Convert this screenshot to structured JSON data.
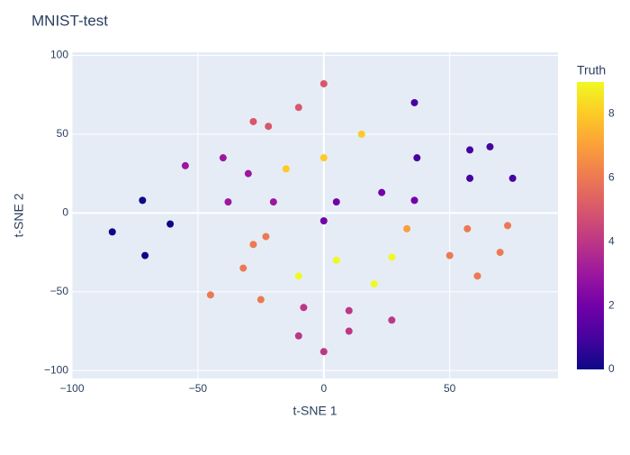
{
  "chart_data": {
    "type": "scatter",
    "title": "MNIST-test",
    "x_label": "t-SNE 1",
    "y_label": "t-SNE 2",
    "colorbar_title": "Truth",
    "x": [
      -72,
      -84,
      -61,
      -71,
      0,
      -10,
      -28,
      -22,
      15,
      0,
      -15,
      36,
      37,
      66,
      58,
      58,
      75,
      -55,
      -40,
      -30,
      -38,
      -20,
      5,
      0,
      23,
      36,
      -28,
      -23,
      -32,
      -45,
      -25,
      57,
      70,
      50,
      61,
      73,
      5,
      27,
      -10,
      20,
      33,
      -8,
      -10,
      10,
      10,
      27,
      0
    ],
    "y": [
      8,
      -12,
      -7,
      -27,
      82,
      67,
      58,
      55,
      50,
      35,
      28,
      70,
      35,
      42,
      40,
      22,
      22,
      30,
      35,
      25,
      7,
      7,
      7,
      -5,
      13,
      8,
      -20,
      -15,
      -35,
      -52,
      -55,
      -10,
      -25,
      -27,
      -40,
      -8,
      -30,
      -28,
      -40,
      -45,
      -10,
      -60,
      -78,
      -75,
      -62,
      -68,
      -88
    ],
    "color_values": [
      0,
      0,
      0,
      0,
      5,
      5,
      5,
      5,
      8,
      8,
      8,
      1,
      1,
      1,
      1,
      1,
      1,
      3,
      3,
      3,
      3,
      3,
      2,
      2,
      2,
      2,
      6,
      6,
      6,
      6,
      6,
      6,
      6,
      6,
      6,
      6,
      9,
      9,
      9,
      9,
      7,
      4,
      4,
      4,
      4,
      4,
      4
    ],
    "xlim": [
      -100,
      93
    ],
    "ylim": [
      -105,
      102
    ],
    "xticks": [
      {
        "value": -100,
        "label": "−100"
      },
      {
        "value": -50,
        "label": "−50"
      },
      0,
      50
    ],
    "yticks": [
      {
        "value": -100,
        "label": "−100"
      },
      {
        "value": -50,
        "label": "−50"
      },
      0,
      50,
      100
    ],
    "clim": [
      0,
      9
    ],
    "cticks": [
      0,
      2,
      4,
      6,
      8
    ],
    "colorscale": [
      "#0d0887",
      "#46039f",
      "#7201a8",
      "#9c179e",
      "#bd3786",
      "#d8576b",
      "#ed7953",
      "#fb9f3a",
      "#fdca26",
      "#f0f921"
    ],
    "grid": true
  }
}
